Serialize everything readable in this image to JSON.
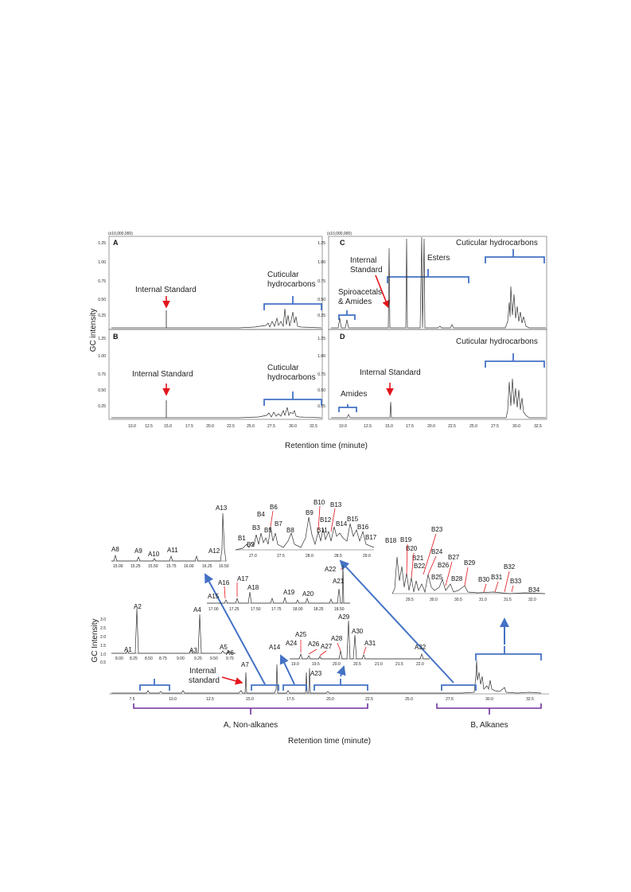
{
  "fig1": {
    "scale_label": "(x10,000,000)",
    "y_axis_title": "GC intensity",
    "x_axis_title": "Retention time (minute)",
    "y_ticks": [
      "1.25",
      "1.00",
      "0.75",
      "0.50",
      "0.25"
    ],
    "x_ticks": [
      "10.0",
      "12.5",
      "15.0",
      "17.5",
      "20.0",
      "22.5",
      "25.0",
      "27.5",
      "30.0",
      "32.5"
    ],
    "panels": {
      "A": {
        "letter": "A",
        "internal_standard": "Internal Standard",
        "cuticular_line1": "Cuticular",
        "cuticular_line2": "hydrocarbons"
      },
      "B": {
        "letter": "B",
        "internal_standard": "Internal Standard",
        "cuticular_line1": "Cuticular",
        "cuticular_line2": "hydrocarbons"
      },
      "C": {
        "letter": "C",
        "internal_line1": "Internal",
        "internal_line2": "Standard",
        "esters": "Esters",
        "spiro_line1": "Spiroacetals",
        "spiro_line2": "& Amides",
        "cuticular": "Cuticular hydrocarbons"
      },
      "D": {
        "letter": "D",
        "internal_standard": "Internal Standard",
        "amides": "Amides",
        "cuticular": "Cuticular hydrocarbons"
      }
    }
  },
  "fig2": {
    "y_axis_title": "GC Intensity",
    "x_axis_title": "Retention time (minute)",
    "y_ticks": [
      "3.0",
      "2.5",
      "2.0",
      "1.5",
      "1.0",
      "0.5"
    ],
    "x_ticks": [
      "7.5",
      "10.0",
      "12.5",
      "15.0",
      "17.5",
      "20.0",
      "22.5",
      "25.0",
      "27.5",
      "30.0",
      "32.5"
    ],
    "internal_line1": "Internal",
    "internal_line2": "standard",
    "group_a": "A, Non-alkanes",
    "group_b": "B, Alkanes",
    "inset1_ticks": [
      "8.00",
      "8.25",
      "8.50",
      "8.75",
      "9.00",
      "9.25",
      "9.50",
      "9.75"
    ],
    "inset2_ticks": [
      "15.00",
      "15.25",
      "15.50",
      "15.75",
      "16.00",
      "16.25",
      "16.50"
    ],
    "inset3_ticks": [
      "17.00",
      "17.25",
      "17.50",
      "17.75",
      "18.00",
      "18.25",
      "18.50"
    ],
    "inset4_ticks": [
      "19.0",
      "19.5",
      "20.0",
      "20.5",
      "21.0",
      "21.5",
      "22.0"
    ],
    "inset5_ticks": [
      "27.0",
      "27.5",
      "28.0",
      "28.5",
      "29.0"
    ],
    "inset6_ticks": [
      "29.5",
      "30.0",
      "30.5",
      "31.0",
      "31.5",
      "32.0"
    ],
    "peaks": {
      "A1": "A1",
      "A2": "A2",
      "A3": "A3",
      "A4": "A4",
      "A5": "A5",
      "A6": "A6",
      "A7": "A7",
      "A8": "A8",
      "A9": "A9",
      "A10": "A10",
      "A11": "A11",
      "A12": "A12",
      "A13": "A13",
      "A14": "A14",
      "A15": "A15",
      "A16": "A16",
      "A17": "A17",
      "A18": "A18",
      "A19": "A19",
      "A20": "A20",
      "A21": "A21",
      "A22": "A22",
      "A23": "A23",
      "A24": "A24",
      "A25": "A25",
      "A26": "A26",
      "A27": "A27",
      "A28": "A28",
      "A29": "A29",
      "A30": "A30",
      "A31": "A31",
      "A32": "A32",
      "B1": "B1",
      "B2": "B2",
      "B3": "B3",
      "B4": "B4",
      "B5": "B5",
      "B6": "B6",
      "B7": "B7",
      "B8": "B8",
      "B9": "B9",
      "B10": "B10",
      "B11": "B11",
      "B12": "B12",
      "B13": "B13",
      "B14": "B14",
      "B15": "B15",
      "B16": "B16",
      "B17": "B17",
      "B18": "B18",
      "B19": "B19",
      "B20": "B20",
      "B21": "B21",
      "B22": "B22",
      "B23": "B23",
      "B24": "B24",
      "B25": "B25",
      "B26": "B26",
      "B27": "B27",
      "B28": "B28",
      "B29": "B29",
      "B30": "B30",
      "B31": "B31",
      "B32": "B32",
      "B33": "B33",
      "B34": "B34"
    }
  },
  "colors": {
    "bracket": "#4472c4",
    "arrow_red": "#e3141c",
    "group": "#7030a0"
  }
}
